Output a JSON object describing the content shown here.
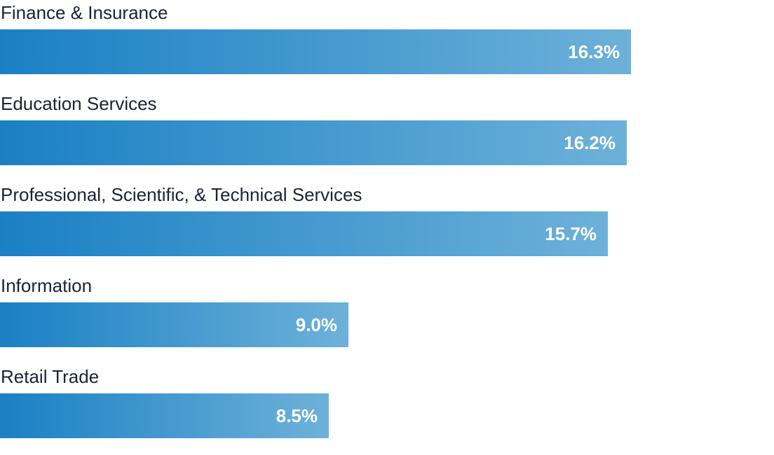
{
  "chart_data": {
    "type": "bar",
    "orientation": "horizontal",
    "categories": [
      "Finance & Insurance",
      "Education Services",
      "Professional, Scientific, & Technical Services",
      "Information",
      "Retail Trade"
    ],
    "values": [
      16.3,
      16.2,
      15.7,
      9.0,
      8.5
    ],
    "value_labels": [
      "16.3%",
      "16.2%",
      "15.7%",
      "9.0%",
      "8.5%"
    ],
    "unit": "%",
    "xlim": [
      0,
      19.995
    ],
    "title": "",
    "xlabel": "",
    "ylabel": "",
    "grid": false,
    "legend": "none",
    "colors": {
      "bar_start": "#1a80c4",
      "bar_end": "#6db1d9",
      "label": "#1b2233",
      "value_text": "#ffffff"
    }
  }
}
